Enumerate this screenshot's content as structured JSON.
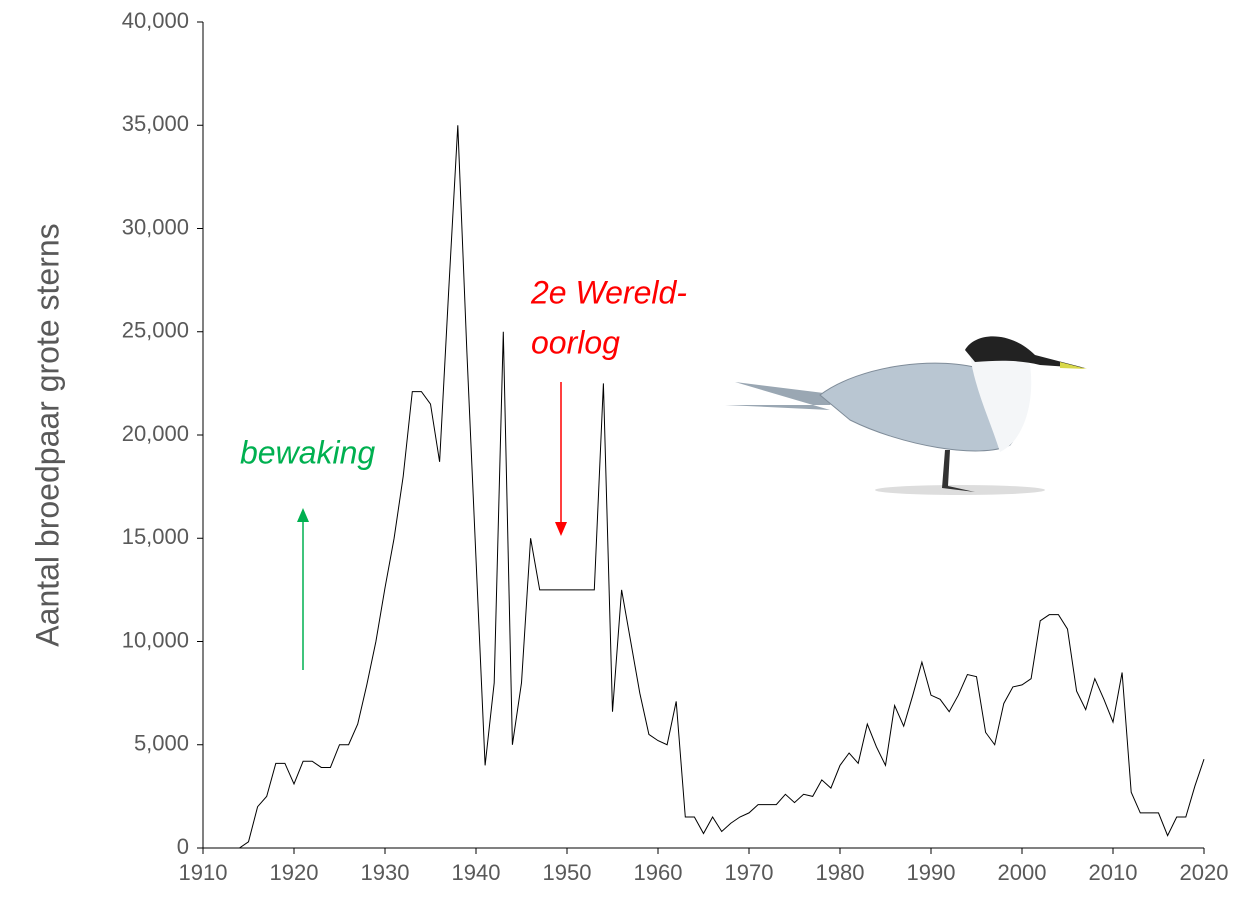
{
  "chart_data": {
    "type": "line",
    "y_label": "Aantal broedpaar grote sterns",
    "annotations": {
      "green": "bewaking",
      "red": [
        "2e Wereld-",
        "oorlog"
      ]
    },
    "color": "#000000",
    "x": [
      1913,
      1914,
      1915,
      1916,
      1917,
      1918,
      1919,
      1920,
      1921,
      1922,
      1923,
      1924,
      1925,
      1926,
      1927,
      1928,
      1929,
      1930,
      1931,
      1932,
      1933,
      1934,
      1935,
      1936,
      1937,
      1938,
      1939,
      1940,
      1941,
      1942,
      1943,
      1944,
      1945,
      1946,
      1947,
      1948,
      1949,
      1950,
      1951,
      1952,
      1953,
      1954,
      1955,
      1956,
      1957,
      1958,
      1959,
      1960,
      1961,
      1962,
      1963,
      1964,
      1965,
      1966,
      1967,
      1968,
      1969,
      1970,
      1971,
      1972,
      1973,
      1974,
      1975,
      1976,
      1977,
      1978,
      1979,
      1980,
      1981,
      1982,
      1983,
      1984,
      1985,
      1986,
      1987,
      1988,
      1989,
      1990,
      1991,
      1992,
      1993,
      1994,
      1995,
      1996,
      1997,
      1998,
      1999,
      2000,
      2001,
      2002,
      2003,
      2004,
      2005,
      2006,
      2007,
      2008,
      2009,
      2010,
      2011,
      2012,
      2013,
      2014,
      2015,
      2016,
      2017,
      2018,
      2019,
      2020
    ],
    "values": [
      0,
      0,
      300,
      2000,
      2500,
      4100,
      4100,
      3100,
      4200,
      4200,
      3900,
      3900,
      5000,
      5000,
      6000,
      7900,
      10000,
      12600,
      15000,
      18000,
      22100,
      22100,
      21500,
      18700,
      27000,
      35000,
      24000,
      14000,
      4000,
      8000,
      25000,
      5000,
      8000,
      15000,
      12500,
      12500,
      12500,
      12500,
      12500,
      12500,
      12500,
      22500,
      6600,
      12500,
      10000,
      7500,
      5500,
      5200,
      5000,
      7100,
      1500,
      1500,
      700,
      1500,
      800,
      1200,
      1500,
      1700,
      2100,
      2100,
      2100,
      2600,
      2200,
      2600,
      2500,
      3300,
      2900,
      4000,
      4600,
      4100,
      6000,
      4900,
      4000,
      6900,
      5900,
      7400,
      9000,
      7400,
      7200,
      6600,
      7400,
      8400,
      8300,
      5600,
      5000,
      7000,
      7800,
      7900,
      8200,
      11000,
      11300,
      11300,
      10600,
      7600,
      6700,
      8200,
      7200,
      6100,
      8500,
      2700,
      1700,
      1700,
      1700,
      600,
      1500,
      1500,
      3000,
      4300
    ],
    "xlim": [
      1910,
      2020
    ],
    "ylim": [
      0,
      40000
    ],
    "xticks": [
      1910,
      1920,
      1930,
      1940,
      1950,
      1960,
      1970,
      1980,
      1990,
      2000,
      2010,
      2020
    ],
    "yticks": [
      0,
      {
        "value": 5000,
        "label": "5,000"
      },
      {
        "value": 10000,
        "label": "10,000"
      },
      {
        "value": 15000,
        "label": "15,000"
      },
      {
        "value": 20000,
        "label": "20,000"
      },
      {
        "value": 25000,
        "label": "25,000"
      },
      {
        "value": 30000,
        "label": "30,000"
      },
      {
        "value": 35000,
        "label": "35,000"
      },
      {
        "value": 40000,
        "label": "40,000"
      }
    ],
    "grid": false
  }
}
